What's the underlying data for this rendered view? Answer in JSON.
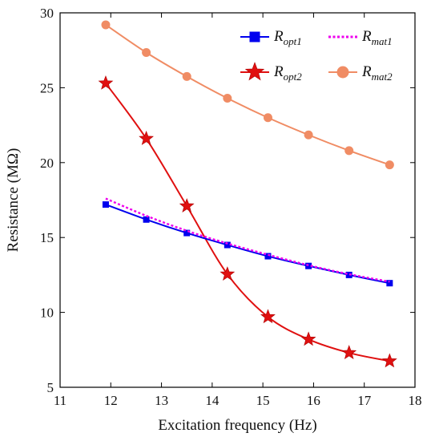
{
  "chart_data": {
    "type": "line",
    "xlabel": "Excitation frequency  (Hz)",
    "ylabel": "Resistance  (MΩ)",
    "xlim": [
      11,
      18
    ],
    "ylim": [
      5,
      30
    ],
    "xticks": [
      11,
      12,
      13,
      14,
      15,
      16,
      17,
      18
    ],
    "yticks": [
      5,
      10,
      15,
      20,
      25,
      30
    ],
    "grid": false,
    "legend_position": "top-right",
    "series": [
      {
        "name": "Ropt1",
        "name_main": "R",
        "name_sub": "opt1",
        "color": "#0000ee",
        "marker": "square",
        "line": "solid",
        "x": [
          11.9,
          12.7,
          13.5,
          14.3,
          15.1,
          15.9,
          16.7,
          17.5
        ],
        "y": [
          17.2,
          16.2,
          15.3,
          14.5,
          13.75,
          13.1,
          12.5,
          11.95
        ]
      },
      {
        "name": "Rmat1",
        "name_main": "R",
        "name_sub": "mat1",
        "color": "#ee00ee",
        "marker": "none",
        "line": "dotted",
        "x": [
          11.9,
          12.7,
          13.5,
          14.3,
          15.1,
          15.9,
          16.7,
          17.5
        ],
        "y": [
          17.6,
          16.45,
          15.45,
          14.6,
          13.85,
          13.15,
          12.55,
          12.05
        ]
      },
      {
        "name": "Ropt2",
        "name_main": "R",
        "name_sub": "opt2",
        "color": "#e01010",
        "marker": "star",
        "line": "solid",
        "x": [
          11.9,
          12.7,
          13.5,
          14.3,
          15.1,
          15.9,
          16.7,
          17.5
        ],
        "y": [
          25.3,
          21.6,
          17.1,
          12.55,
          9.7,
          8.2,
          7.3,
          6.75
        ]
      },
      {
        "name": "Rmat2",
        "name_main": "R",
        "name_sub": "mat2",
        "color": "#f08c64",
        "marker": "circle",
        "line": "solid",
        "x": [
          11.9,
          12.7,
          13.5,
          14.3,
          15.1,
          15.9,
          16.7,
          17.5
        ],
        "y": [
          29.2,
          27.35,
          25.75,
          24.3,
          23.0,
          21.85,
          20.8,
          19.85
        ]
      }
    ]
  }
}
